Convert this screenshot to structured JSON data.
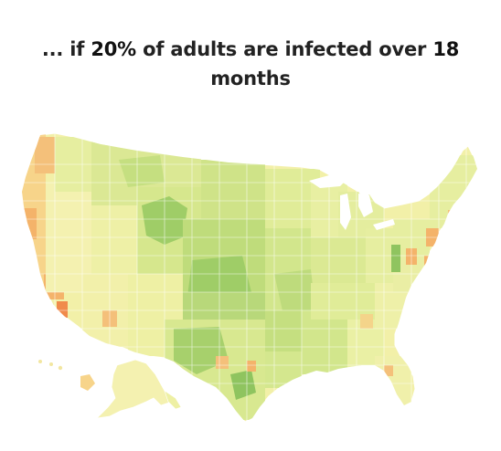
{
  "title": {
    "prefix": "... if ",
    "percent": "20%",
    "middle": " of adults are infected over ",
    "months": "18",
    "line2": "months"
  },
  "colors": {
    "background": "#ffffff",
    "base_light": "#f4f1a8",
    "low_green": "#d7e88c",
    "mid_green": "#b9d97a",
    "high_green": "#8fc45f",
    "orange_light": "#f7d48a",
    "orange": "#f4b36a",
    "orange_dark": "#f08a4b",
    "outline": "#ffffff"
  }
}
